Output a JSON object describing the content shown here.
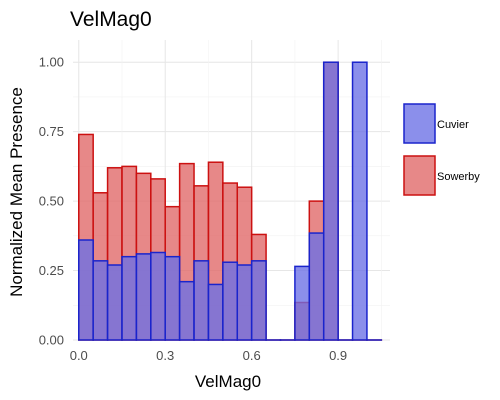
{
  "chart_data": {
    "type": "bar",
    "title": "VelMag0",
    "xlabel": "VelMag0",
    "ylabel": "Normalized Mean Presence",
    "xlim": [
      -0.02,
      1.08
    ],
    "ylim": [
      0,
      1.08
    ],
    "xticks": [
      0.0,
      0.3,
      0.6,
      0.9
    ],
    "xtick_labels": [
      "0.0",
      "0.3",
      "0.6",
      "0.9"
    ],
    "yticks": [
      0,
      0.25,
      0.5,
      0.75,
      1.0
    ],
    "ytick_labels": [
      "0.00",
      "0.25",
      "0.50",
      "0.75",
      "1.00"
    ],
    "bin_width": 0.05,
    "grid": true,
    "legend_position": "right",
    "x": [
      0.025,
      0.075,
      0.125,
      0.175,
      0.225,
      0.275,
      0.325,
      0.375,
      0.425,
      0.475,
      0.525,
      0.575,
      0.625,
      0.675,
      0.725,
      0.775,
      0.825,
      0.875,
      0.925,
      0.975,
      1.025
    ],
    "series": [
      {
        "name": "Sowerby",
        "fill": "#e06666",
        "stroke": "#cc1111",
        "values": [
          0.74,
          0.53,
          0.62,
          0.625,
          0.6,
          0.58,
          0.48,
          0.635,
          0.555,
          0.64,
          0.565,
          0.55,
          0.38,
          0,
          0,
          0.135,
          0.5,
          1.0,
          0,
          0,
          0
        ]
      },
      {
        "name": "Cuvier",
        "fill": "#6a6fe6",
        "stroke": "#1a24cc",
        "values": [
          0.36,
          0.285,
          0.27,
          0.3,
          0.31,
          0.315,
          0.3,
          0.21,
          0.285,
          0.2,
          0.28,
          0.27,
          0.285,
          0,
          0,
          0.265,
          0.385,
          1.0,
          0,
          1.0,
          0
        ]
      }
    ]
  }
}
